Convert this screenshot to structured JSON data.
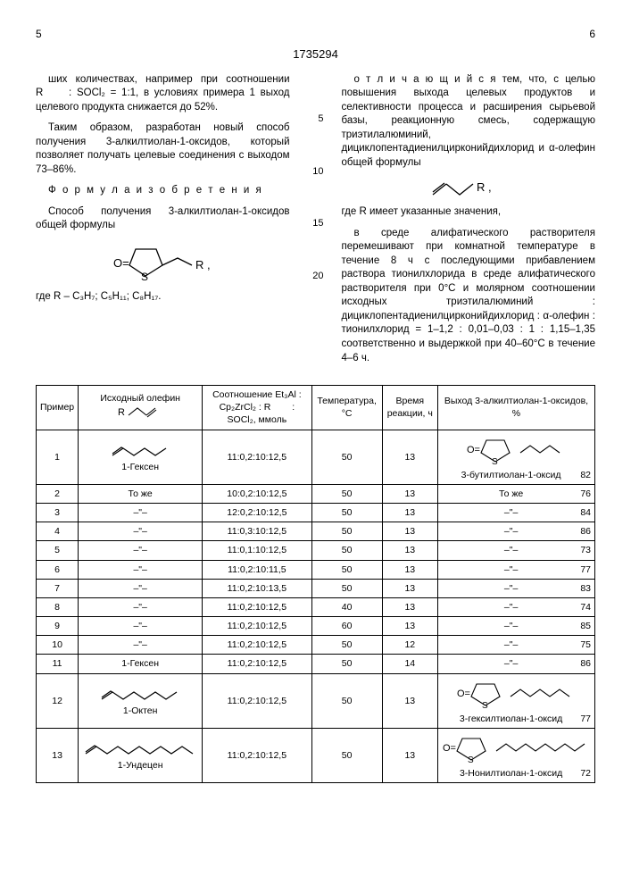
{
  "header": {
    "page_left": "5",
    "patent_number": "1735294",
    "page_right": "6"
  },
  "left_col": {
    "para1": "ших количествах, например при соотношении R   : SOCl₂ = 1:1, в условиях примера 1 выход целевого продукта снижается до 52%.",
    "para2": "Таким образом, разработан новый способ получения 3-алкилтиолан-1-оксидов, который позволяет получать целевые соединения с выходом 73–86%.",
    "formula_heading": "Ф о р м у л а  и з о б р е т е н и я",
    "para3": "Способ получения 3-алкилтиолан-1-оксидов общей формулы",
    "structure_label": "O=S  R ,",
    "where": "где R – C₃H₇; C₅H₁₁; C₈H₁₇."
  },
  "right_col": {
    "para1": "о т л и ч а ю щ и й с я  тем, что, с целью повышения выхода целевых продуктов и селективности процесса и расширения сырьевой базы, реакционную смесь, содержащую триэтилалюминий, дициклопентадиенилцирконийдихлорид и α-олефин общей формулы",
    "structure_label": "R ,",
    "para2": "где R имеет указанные значения,",
    "para3": "в среде алифатического растворителя перемешивают при комнатной температуре в течение 8 ч с последующими прибавлением раствора тионилхлорида в среде алифатического растворителя при 0°С и молярном соотношении исходных триэтилалюминий : дициклопентадиенилцирконийдихлорид : α-олефин : тионилхлорид = 1–1,2 : 0,01–0,03 : 1 : 1,15–1,35 соответственно и выдержкой при 40–60°С в течение 4–6 ч."
  },
  "line_nums": {
    "n5": "5",
    "n10": "10",
    "n15": "15",
    "n20": "20"
  },
  "table": {
    "headers": {
      "example": "Пример",
      "olefin": "Исходный олефин",
      "olefin_sub": "R",
      "ratio": "Соотношение Et₃Al : Cp₂ZrCl₂ : R   : SOCl₂, ммоль",
      "temp": "Температура, °C",
      "time": "Время реакции, ч",
      "yield": "Выход 3-алкилтиолан-1-оксидов, %"
    },
    "rows": [
      {
        "n": "1",
        "olefin_name": "1-Гексен",
        "olefin_zigzag": 4,
        "ratio": "11:0,2:10:12,5",
        "t": "50",
        "h": "13",
        "prod_name": "3-бутилтиолан-1-оксид",
        "prod_zigzag": 4,
        "y": "82"
      },
      {
        "n": "2",
        "olefin_name": "То же",
        "ratio": "10:0,2:10:12,5",
        "t": "50",
        "h": "13",
        "prod_name": "То же",
        "y": "76"
      },
      {
        "n": "3",
        "olefin_name": "–\"–",
        "ratio": "12:0,2:10:12,5",
        "t": "50",
        "h": "13",
        "prod_name": "–\"–",
        "y": "84"
      },
      {
        "n": "4",
        "olefin_name": "–\"–",
        "ratio": "11:0,3:10:12,5",
        "t": "50",
        "h": "13",
        "prod_name": "–\"–",
        "y": "86"
      },
      {
        "n": "5",
        "olefin_name": "–\"–",
        "ratio": "11:0,1:10:12,5",
        "t": "50",
        "h": "13",
        "prod_name": "–\"–",
        "y": "73"
      },
      {
        "n": "6",
        "olefin_name": "–\"–",
        "ratio": "11:0,2:10:11,5",
        "t": "50",
        "h": "13",
        "prod_name": "–\"–",
        "y": "77"
      },
      {
        "n": "7",
        "olefin_name": "–\"–",
        "ratio": "11:0,2:10:13,5",
        "t": "50",
        "h": "13",
        "prod_name": "–\"–",
        "y": "83"
      },
      {
        "n": "8",
        "olefin_name": "–\"–",
        "ratio": "11:0,2:10:12,5",
        "t": "40",
        "h": "13",
        "prod_name": "–\"–",
        "y": "74"
      },
      {
        "n": "9",
        "olefin_name": "–\"–",
        "ratio": "11:0,2:10:12,5",
        "t": "60",
        "h": "13",
        "prod_name": "–\"–",
        "y": "85"
      },
      {
        "n": "10",
        "olefin_name": "–\"–",
        "ratio": "11:0,2:10:12,5",
        "t": "50",
        "h": "12",
        "prod_name": "–\"–",
        "y": "75"
      },
      {
        "n": "11",
        "olefin_name": "1-Гексен",
        "ratio": "11:0,2:10:12,5",
        "t": "50",
        "h": "14",
        "prod_name": "–\"–",
        "y": "86"
      },
      {
        "n": "12",
        "olefin_name": "1-Октен",
        "olefin_zigzag": 6,
        "ratio": "11:0,2:10:12,5",
        "t": "50",
        "h": "13",
        "prod_name": "3-гексилтиолан-1-оксид",
        "prod_zigzag": 6,
        "y": "77"
      },
      {
        "n": "13",
        "olefin_name": "1-Ундецен",
        "olefin_zigzag": 9,
        "ratio": "11:0,2:10:12,5",
        "t": "50",
        "h": "13",
        "prod_name": "3-Нонилтиолан-1-оксид",
        "prod_zigzag": 9,
        "y": "72"
      }
    ]
  }
}
